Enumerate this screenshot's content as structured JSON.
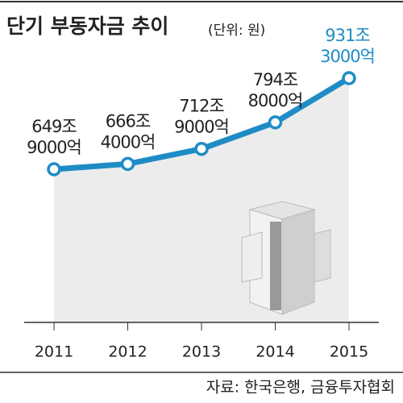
{
  "chart_data": {
    "type": "line",
    "title": "단기 부동자금 추이",
    "subtitle": "(단위: 원)",
    "categories": [
      "2011",
      "2012",
      "2013",
      "2014",
      "2015"
    ],
    "values": [
      649.9,
      666.4,
      712.9,
      794.8,
      931.3
    ],
    "value_labels": [
      [
        "649조",
        "9000억"
      ],
      [
        "666조",
        "4000억"
      ],
      [
        "712조",
        "9000억"
      ],
      [
        "794조",
        "8000억"
      ],
      [
        "931조",
        "3000억"
      ]
    ],
    "color": "#1f8cc6",
    "source": "자료: 한국은행, 금융투자협회"
  }
}
